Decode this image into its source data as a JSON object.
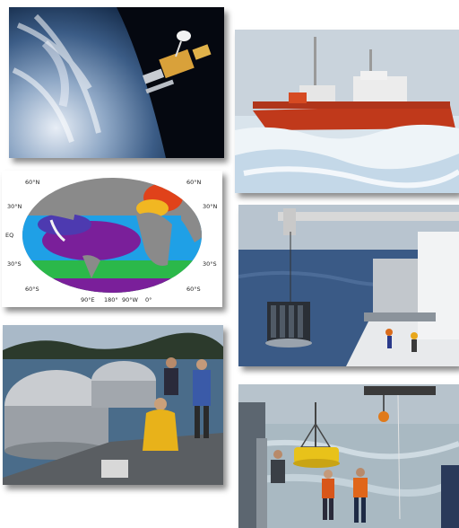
{
  "collage": {
    "photos": [
      {
        "id": "satellite",
        "subject": "satellite-in-orbit-above-earth"
      },
      {
        "id": "icebreaker",
        "subject": "red-icebreaker-ship-in-sea-ice"
      },
      {
        "id": "ocean-map",
        "subject": "global-ocean-color-map"
      },
      {
        "id": "ship-deck-rosette",
        "subject": "ctd-rosette-lowered-from-ship"
      },
      {
        "id": "mesocosm",
        "subject": "researchers-at-floating-enclosures"
      },
      {
        "id": "buoy-deployment",
        "subject": "crew-deploying-yellow-buoy"
      }
    ]
  },
  "map_labels": {
    "lat_left": [
      "60°N",
      "30°N",
      "EQ",
      "30°S",
      "60°S"
    ],
    "lat_right": [
      "60°N",
      "30°N",
      "30°S",
      "60°S"
    ],
    "lon_bottom": [
      "90°E",
      "180°",
      "90°W",
      "0°"
    ]
  },
  "colors": {
    "ship_hull": "#c0391b",
    "ocean_low": "#7a1f9a",
    "ocean_mid": "#1fa0e6",
    "ocean_high": "#e0421a",
    "buoy": "#e8c21a",
    "land": "#8a8a8a"
  }
}
